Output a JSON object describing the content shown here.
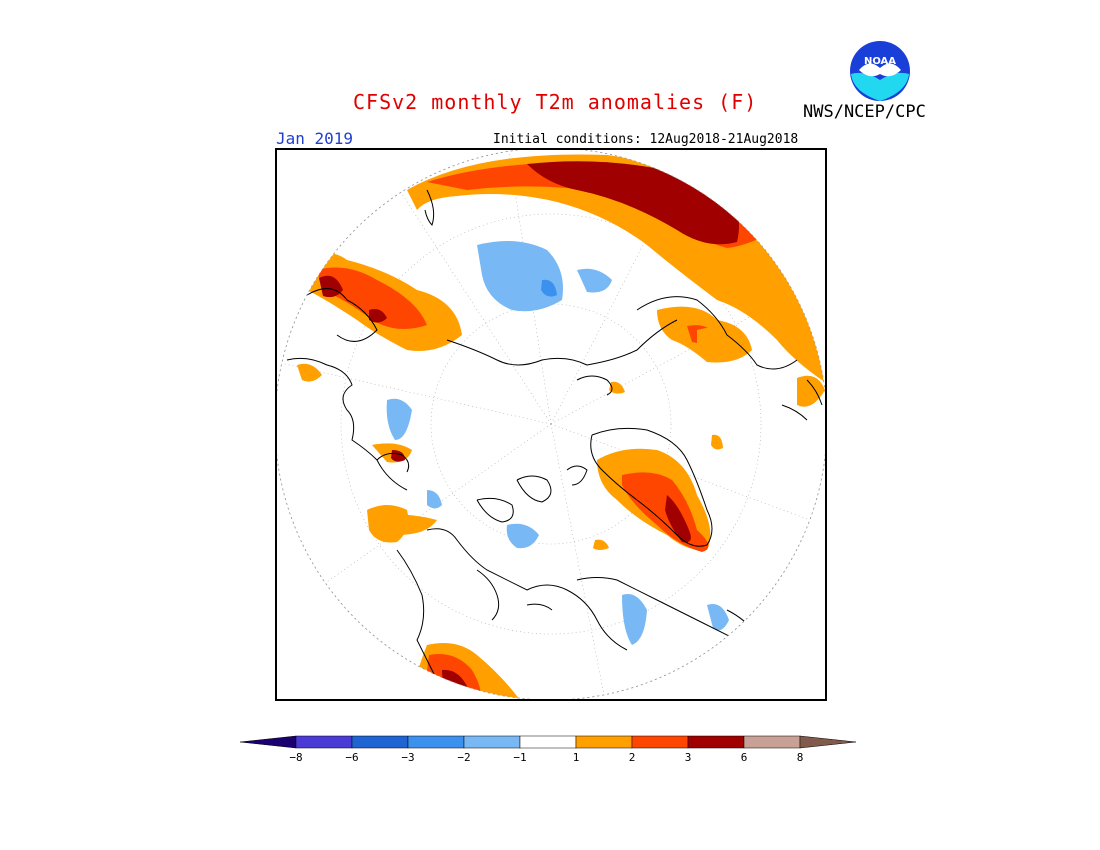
{
  "header": {
    "title": "CFSv2 monthly T2m anomalies (F)",
    "agency": "NWS/NCEP/CPC",
    "month": "Jan 2019",
    "initial_conditions": "Initial conditions: 12Aug2018-21Aug2018",
    "logo_text": "NOAA"
  },
  "colorbar": {
    "bins": [
      {
        "color": "#1a0070"
      },
      {
        "color": "#4b3bd6"
      },
      {
        "color": "#1e64d2"
      },
      {
        "color": "#3c91ee"
      },
      {
        "color": "#78b9f5"
      },
      {
        "color": "#ffffff"
      },
      {
        "color": "#ffa000"
      },
      {
        "color": "#ff4600"
      },
      {
        "color": "#a00000"
      },
      {
        "color": "#c8a096"
      },
      {
        "color": "#825a4b"
      }
    ],
    "tick_labels": [
      "−8",
      "−6",
      "−3",
      "−2",
      "−1",
      "1",
      "2",
      "3",
      "6",
      "8"
    ]
  },
  "colors": {
    "orange": "#ffa000",
    "red": "#ff4600",
    "dark_red": "#a00000",
    "light_blue": "#78b9f5",
    "blue": "#3c91ee"
  }
}
